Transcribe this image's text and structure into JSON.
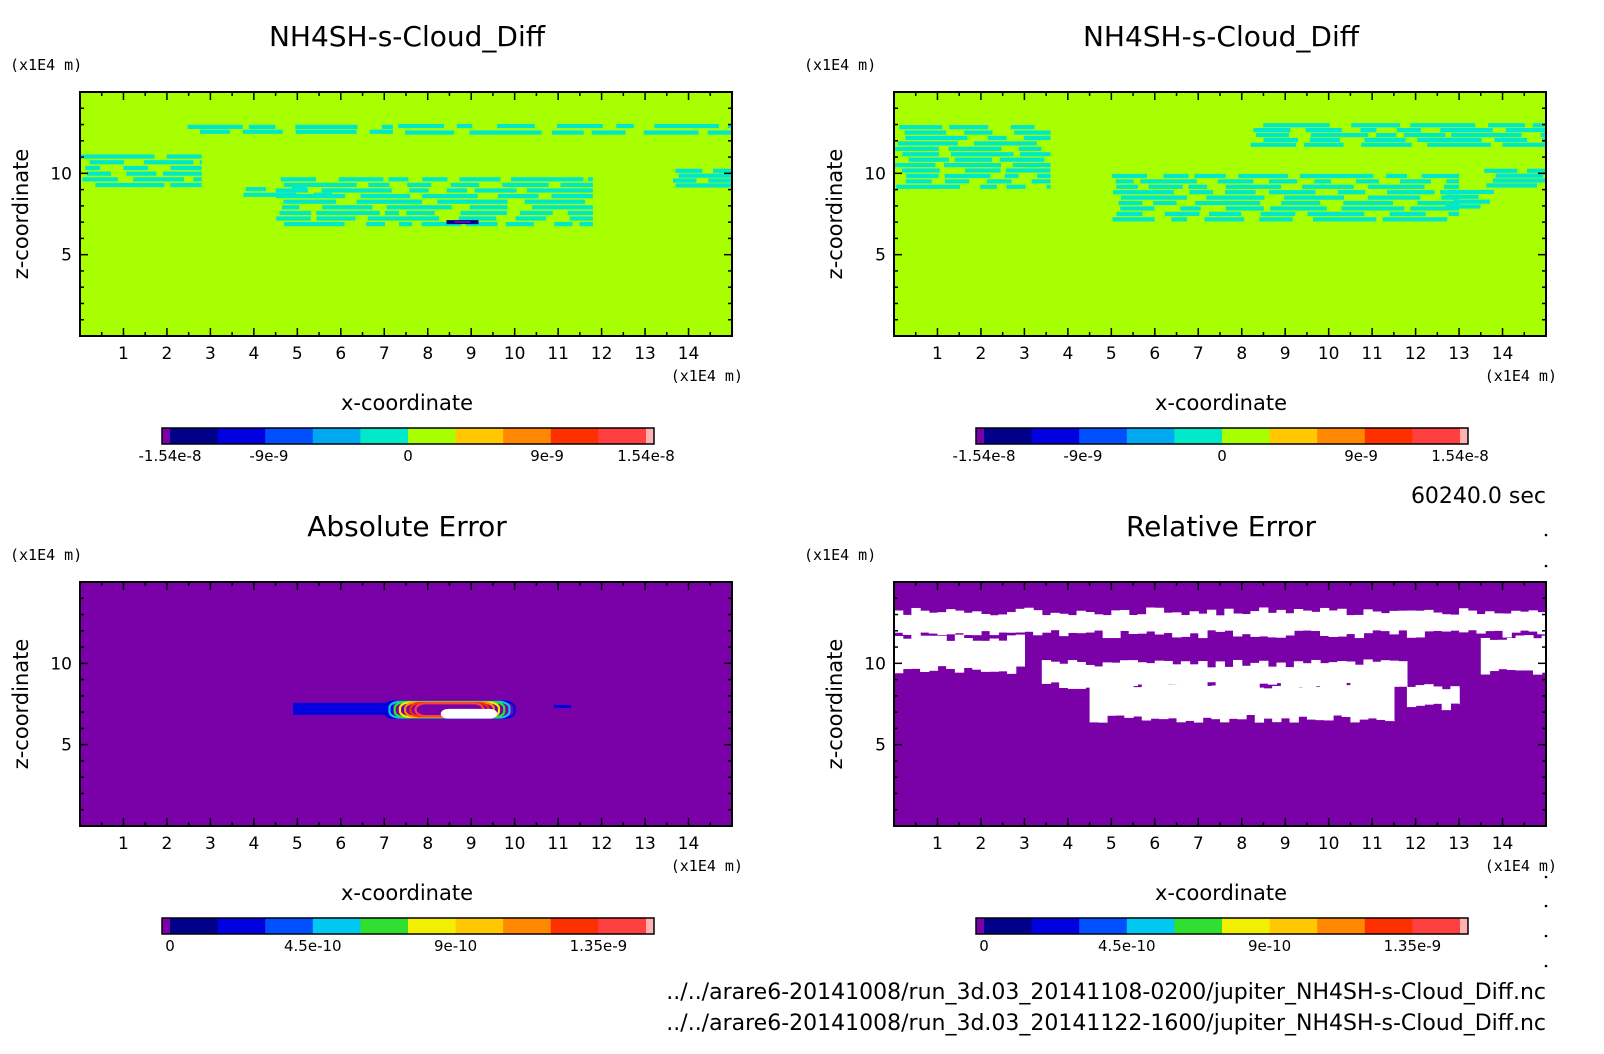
{
  "time_label": "60240.0 sec",
  "files": [
    "../../arare6-20141008/run_3d.03_20141108-0200/jupiter_NH4SH-s-Cloud_Diff.nc",
    "../../arare6-20141008/run_3d.03_20141122-1600/jupiter_NH4SH-s-Cloud_Diff.nc"
  ],
  "colors": {
    "diverging": [
      "#7a00a8",
      "#00008b",
      "#0000e0",
      "#0050ff",
      "#00a8f0",
      "#00e8c8",
      "#a8ff00",
      "#ffc800",
      "#ff8800",
      "#ff3000",
      "#ff4040",
      "#ffb0b0"
    ],
    "sequential": [
      "#7a00a8",
      "#00008b",
      "#0000e0",
      "#0050ff",
      "#00c8f0",
      "#30e030",
      "#f0f000",
      "#ffc800",
      "#ff8800",
      "#ff3000",
      "#ff4040",
      "#ffb0b0"
    ],
    "bg_field": "#a8ff00",
    "cloud_field": "#00e8c8",
    "error_bg": "#7a00a8",
    "void": "#ffffff"
  },
  "chart_data": [
    {
      "type": "heatmap",
      "title": "NH4SH-s-Cloud_Diff",
      "xlabel": "x-coordinate",
      "ylabel": "z-coordinate",
      "x_unit": "(x1E4 m)",
      "y_unit": "(x1E4 m)",
      "xlim": [
        0,
        15
      ],
      "ylim": [
        0,
        15
      ],
      "xticks": [
        "1",
        "2",
        "3",
        "4",
        "5",
        "6",
        "7",
        "8",
        "9",
        "10",
        "11",
        "12",
        "13",
        "14"
      ],
      "yticks": [
        "5",
        "10"
      ],
      "colorbar": {
        "min": -1.54e-08,
        "max": 1.54e-08,
        "labels": [
          "-1.54e-8",
          "-9e-9",
          "0",
          "9e-9",
          "1.54e-8"
        ],
        "label_values": [
          -1.54e-08,
          -9e-09,
          0,
          9e-09,
          1.54e-08
        ]
      },
      "cloud_bands": [
        {
          "x0": 0.0,
          "x1": 2.8,
          "z0": 9.1,
          "z1": 11.2
        },
        {
          "x0": 2.4,
          "x1": 7.2,
          "z0": 12.4,
          "z1": 13.0
        },
        {
          "x0": 7.2,
          "x1": 15.0,
          "z0": 12.3,
          "z1": 13.1
        },
        {
          "x0": 3.5,
          "x1": 5.8,
          "z0": 8.5,
          "z1": 9.2
        },
        {
          "x0": 4.5,
          "x1": 11.8,
          "z0": 6.7,
          "z1": 9.8
        },
        {
          "x0": 13.5,
          "x1": 15.0,
          "z0": 9.1,
          "z1": 10.3
        }
      ],
      "extreme_spots": [
        {
          "x": 8.8,
          "z": 7.0,
          "v": -1.5e-08
        }
      ]
    },
    {
      "type": "heatmap",
      "title": "NH4SH-s-Cloud_Diff",
      "xlabel": "x-coordinate",
      "ylabel": "z-coordinate",
      "x_unit": "(x1E4 m)",
      "y_unit": "(x1E4 m)",
      "xlim": [
        0,
        15
      ],
      "ylim": [
        0,
        15
      ],
      "xticks": [
        "1",
        "2",
        "3",
        "4",
        "5",
        "6",
        "7",
        "8",
        "9",
        "10",
        "11",
        "12",
        "13",
        "14"
      ],
      "yticks": [
        "5",
        "10"
      ],
      "colorbar": {
        "min": -1.54e-08,
        "max": 1.54e-08,
        "labels": [
          "-1.54e-8",
          "-9e-9",
          "0",
          "9e-9",
          "1.54e-8"
        ],
        "label_values": [
          -1.54e-08,
          -9e-09,
          0,
          9e-09,
          1.54e-08
        ]
      },
      "cloud_bands": [
        {
          "x0": 0.0,
          "x1": 3.6,
          "z0": 9.0,
          "z1": 13.0
        },
        {
          "x0": 8.2,
          "x1": 15.0,
          "z0": 11.6,
          "z1": 13.1
        },
        {
          "x0": 5.0,
          "x1": 13.0,
          "z0": 7.0,
          "z1": 10.0
        },
        {
          "x0": 12.6,
          "x1": 13.8,
          "z0": 7.8,
          "z1": 9.0
        },
        {
          "x0": 13.5,
          "x1": 15.0,
          "z0": 9.1,
          "z1": 10.3
        }
      ],
      "extreme_spots": []
    },
    {
      "type": "heatmap",
      "title": "Absolute Error",
      "xlabel": "x-coordinate",
      "ylabel": "z-coordinate",
      "x_unit": "(x1E4 m)",
      "y_unit": "(x1E4 m)",
      "xlim": [
        0,
        15
      ],
      "ylim": [
        0,
        15
      ],
      "xticks": [
        "1",
        "2",
        "3",
        "4",
        "5",
        "6",
        "7",
        "8",
        "9",
        "10",
        "11",
        "12",
        "13",
        "14"
      ],
      "yticks": [
        "5",
        "10"
      ],
      "colorbar": {
        "min": 0,
        "max": 1.5e-09,
        "labels": [
          "0",
          "4.5e-10",
          "9e-10",
          "1.35e-9"
        ],
        "label_values": [
          0,
          4.5e-10,
          9e-10,
          1.35e-09
        ]
      },
      "hot_region": {
        "x0": 4.9,
        "x1": 11.3,
        "z0": 6.6,
        "z1": 7.7
      },
      "peak_white_region": {
        "x0": 8.3,
        "x1": 9.6,
        "z0": 6.6,
        "z1": 7.2
      }
    },
    {
      "type": "heatmap",
      "title": "Relative Error",
      "xlabel": "x-coordinate",
      "ylabel": "z-coordinate",
      "x_unit": "(x1E4 m)",
      "y_unit": "(x1E4 m)",
      "xlim": [
        0,
        15
      ],
      "ylim": [
        0,
        15
      ],
      "xticks": [
        "1",
        "2",
        "3",
        "4",
        "5",
        "6",
        "7",
        "8",
        "9",
        "10",
        "11",
        "12",
        "13",
        "14"
      ],
      "yticks": [
        "5",
        "10"
      ],
      "colorbar": {
        "min": 0,
        "max": 1.5e-09,
        "labels": [
          "0",
          "4.5e-10",
          "9e-10",
          "1.35e-9"
        ],
        "label_values": [
          0,
          4.5e-10,
          9e-10,
          1.35e-09
        ]
      },
      "undefined_regions": [
        {
          "x0": 0.0,
          "x1": 15.0,
          "z0": 11.8,
          "z1": 13.2
        },
        {
          "x0": 0.0,
          "x1": 3.0,
          "z0": 9.6,
          "z1": 11.6
        },
        {
          "x0": 13.5,
          "x1": 15.0,
          "z0": 9.4,
          "z1": 11.6
        },
        {
          "x0": 3.4,
          "x1": 11.8,
          "z0": 8.6,
          "z1": 10.0
        },
        {
          "x0": 4.5,
          "x1": 11.5,
          "z0": 6.6,
          "z1": 8.7
        },
        {
          "x0": 11.8,
          "x1": 13.0,
          "z0": 7.3,
          "z1": 8.6
        }
      ]
    }
  ]
}
